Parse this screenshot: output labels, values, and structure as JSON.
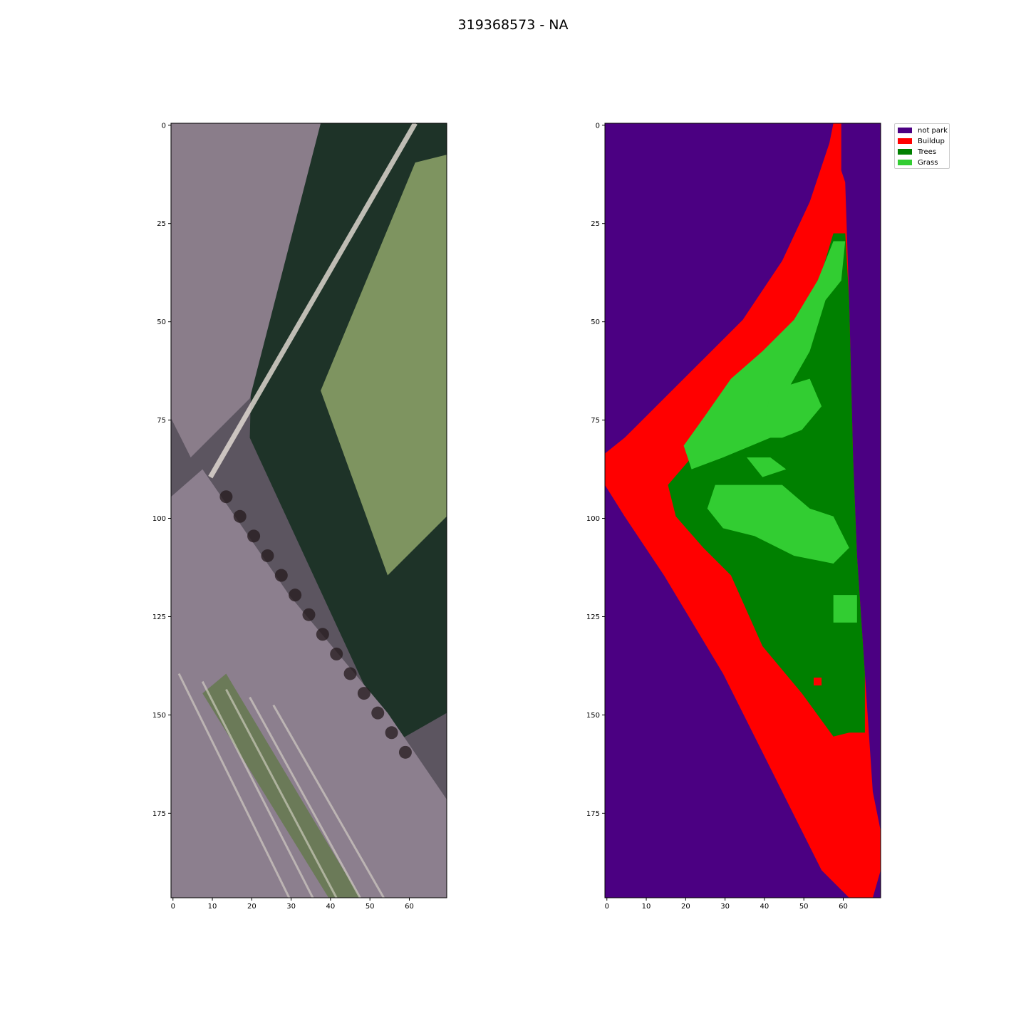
{
  "title": "319368573 - NA",
  "chart_data": [
    {
      "type": "heatmap",
      "panel": "rgb-image",
      "description_kind": "satellite RGB imagery",
      "xlim": [
        0,
        70
      ],
      "ylim": [
        197,
        0
      ],
      "x_ticks": [
        "0",
        "10",
        "20",
        "30",
        "40",
        "50",
        "60"
      ],
      "y_ticks": [
        "0",
        "25",
        "50",
        "75",
        "100",
        "125",
        "150",
        "175"
      ],
      "bands": [
        {
          "name": "tree-canopy",
          "color": "#1e3328",
          "polygon": [
            [
              22,
              0
            ],
            [
              70,
              0
            ],
            [
              70,
              150
            ],
            [
              56,
              158
            ],
            [
              20,
              80
            ]
          ]
        },
        {
          "name": "road-upper",
          "color": "#8a7d8a",
          "polygon": [
            [
              0,
              0
            ],
            [
              22,
              0
            ],
            [
              38,
              0
            ],
            [
              20,
              70
            ],
            [
              5,
              85
            ],
            [
              0,
              75
            ]
          ]
        },
        {
          "name": "grass-median",
          "color": "#7e9460",
          "polygon": [
            [
              62,
              10
            ],
            [
              70,
              8
            ],
            [
              70,
              100
            ],
            [
              55,
              115
            ],
            [
              38,
              68
            ]
          ]
        },
        {
          "name": "road-lower",
          "color": "#8c7f8e",
          "polygon": [
            [
              0,
              95
            ],
            [
              8,
              88
            ],
            [
              30,
              120
            ],
            [
              55,
              150
            ],
            [
              70,
              172
            ],
            [
              70,
              197
            ],
            [
              0,
              197
            ]
          ]
        },
        {
          "name": "dark-strip",
          "color": "#6b7a58",
          "polygon": [
            [
              8,
              145
            ],
            [
              14,
              140
            ],
            [
              48,
              197
            ],
            [
              40,
              197
            ]
          ]
        }
      ]
    },
    {
      "type": "heatmap",
      "panel": "segmentation-mask",
      "xlim": [
        0,
        70
      ],
      "ylim": [
        197,
        0
      ],
      "x_ticks": [
        "0",
        "10",
        "20",
        "30",
        "40",
        "50",
        "60"
      ],
      "y_ticks": [
        "0",
        "25",
        "50",
        "75",
        "100",
        "125",
        "150",
        "175"
      ],
      "classes": [
        {
          "name": "not park",
          "color": "#4b0082"
        },
        {
          "name": "Buildup",
          "color": "#ff0000"
        },
        {
          "name": "Trees",
          "color": "#008000"
        },
        {
          "name": "Grass",
          "color": "#32cd32"
        }
      ],
      "regions": [
        {
          "class": "Buildup",
          "polygon": [
            [
              58,
              0
            ],
            [
              60,
              0
            ],
            [
              60,
              12
            ],
            [
              61,
              15
            ],
            [
              62,
              45
            ],
            [
              63,
              85
            ],
            [
              64,
              110
            ],
            [
              66,
              140
            ],
            [
              67,
              155
            ],
            [
              68,
              170
            ],
            [
              70,
              180
            ],
            [
              70,
              190
            ],
            [
              68,
              197
            ],
            [
              62,
              197
            ],
            [
              55,
              190
            ],
            [
              45,
              170
            ],
            [
              30,
              140
            ],
            [
              15,
              115
            ],
            [
              5,
              100
            ],
            [
              0,
              92
            ],
            [
              0,
              84
            ],
            [
              5,
              80
            ],
            [
              15,
              70
            ],
            [
              25,
              60
            ],
            [
              35,
              50
            ],
            [
              45,
              35
            ],
            [
              52,
              20
            ],
            [
              57,
              5
            ]
          ]
        },
        {
          "class": "Trees",
          "polygon": [
            [
              58,
              28
            ],
            [
              61,
              28
            ],
            [
              62,
              45
            ],
            [
              63,
              85
            ],
            [
              64,
              110
            ],
            [
              66,
              140
            ],
            [
              66,
              155
            ],
            [
              62,
              155
            ],
            [
              58,
              156
            ],
            [
              50,
              145
            ],
            [
              40,
              133
            ],
            [
              32,
              115
            ],
            [
              25,
              108
            ],
            [
              18,
              100
            ],
            [
              16,
              92
            ],
            [
              22,
              85
            ],
            [
              30,
              75
            ],
            [
              40,
              62
            ],
            [
              50,
              48
            ],
            [
              55,
              38
            ]
          ]
        },
        {
          "class": "Grass",
          "polygon": [
            [
              58,
              30
            ],
            [
              61,
              30
            ],
            [
              60,
              40
            ],
            [
              56,
              45
            ],
            [
              52,
              58
            ],
            [
              48,
              65
            ],
            [
              44,
              72
            ],
            [
              42,
              80
            ],
            [
              30,
              85
            ],
            [
              22,
              88
            ],
            [
              20,
              82
            ],
            [
              25,
              75
            ],
            [
              32,
              65
            ],
            [
              40,
              58
            ],
            [
              48,
              50
            ],
            [
              54,
              40
            ]
          ]
        },
        {
          "class": "Grass",
          "polygon": [
            [
              42,
              68
            ],
            [
              52,
              65
            ],
            [
              55,
              72
            ],
            [
              50,
              78
            ],
            [
              45,
              80
            ],
            [
              40,
              80
            ]
          ]
        },
        {
          "class": "Grass",
          "polygon": [
            [
              28,
              92
            ],
            [
              45,
              92
            ],
            [
              52,
              98
            ],
            [
              58,
              100
            ],
            [
              62,
              108
            ],
            [
              58,
              112
            ],
            [
              48,
              110
            ],
            [
              38,
              105
            ],
            [
              30,
              103
            ],
            [
              26,
              98
            ]
          ]
        },
        {
          "class": "Grass",
          "polygon": [
            [
              36,
              85
            ],
            [
              42,
              85
            ],
            [
              46,
              88
            ],
            [
              40,
              90
            ]
          ]
        },
        {
          "class": "Grass",
          "polygon": [
            [
              58,
              120
            ],
            [
              64,
              120
            ],
            [
              64,
              127
            ],
            [
              58,
              127
            ]
          ]
        },
        {
          "class": "Buildup",
          "polygon": [
            [
              53,
              141
            ],
            [
              55,
              141
            ],
            [
              55,
              143
            ],
            [
              53,
              143
            ]
          ]
        }
      ]
    }
  ],
  "legend": {
    "entries": [
      {
        "label": "not park",
        "color": "#4b0082"
      },
      {
        "label": "Buildup",
        "color": "#ff0000"
      },
      {
        "label": "Trees",
        "color": "#008000"
      },
      {
        "label": "Grass",
        "color": "#32cd32"
      }
    ]
  }
}
